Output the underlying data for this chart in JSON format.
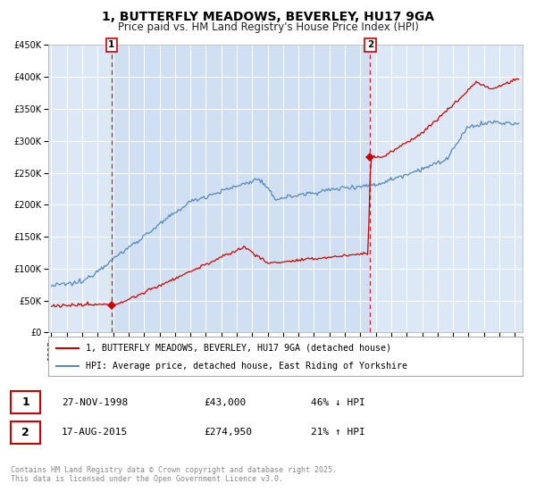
{
  "title": "1, BUTTERFLY MEADOWS, BEVERLEY, HU17 9GA",
  "subtitle": "Price paid vs. HM Land Registry's House Price Index (HPI)",
  "title_fontsize": 10,
  "subtitle_fontsize": 8.5,
  "background_color": "#ffffff",
  "plot_bg_color": "#dce8f5",
  "shade_color": "#dce8f5",
  "grid_color": "#ffffff",
  "ylim": [
    0,
    450000
  ],
  "xlim_start": 1994.8,
  "xlim_end": 2025.5,
  "ytick_labels": [
    "£0",
    "£50K",
    "£100K",
    "£150K",
    "£200K",
    "£250K",
    "£300K",
    "£350K",
    "£400K",
    "£450K"
  ],
  "ytick_values": [
    0,
    50000,
    100000,
    150000,
    200000,
    250000,
    300000,
    350000,
    400000,
    450000
  ],
  "marker1_year": 1998.9,
  "marker1_value": 43000,
  "marker1_label": "1",
  "marker1_date": "27-NOV-1998",
  "marker1_price": "£43,000",
  "marker1_hpi": "46% ↓ HPI",
  "marker2_year": 2015.63,
  "marker2_value": 274950,
  "marker2_label": "2",
  "marker2_date": "17-AUG-2015",
  "marker2_price": "£274,950",
  "marker2_hpi": "21% ↑ HPI",
  "legend_label_red": "1, BUTTERFLY MEADOWS, BEVERLEY, HU17 9GA (detached house)",
  "legend_label_blue": "HPI: Average price, detached house, East Riding of Yorkshire",
  "footer_text": "Contains HM Land Registry data © Crown copyright and database right 2025.\nThis data is licensed under the Open Government Licence v3.0.",
  "red_color": "#cc0000",
  "blue_color": "#5588bb",
  "marker_box_color": "#cc0000"
}
